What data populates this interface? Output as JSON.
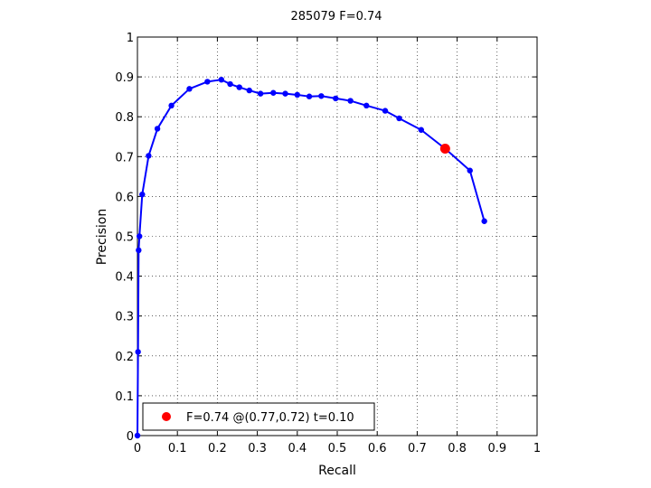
{
  "chart_data": {
    "type": "line",
    "title": "285079 F=0.74",
    "xlabel": "Recall",
    "ylabel": "Precision",
    "xlim": [
      0,
      1
    ],
    "ylim": [
      0,
      1
    ],
    "grid": true,
    "legend_position": "bottom-left",
    "x_tick_labels": [
      "0",
      "0.1",
      "0.2",
      "0.3",
      "0.4",
      "0.5",
      "0.6",
      "0.7",
      "0.8",
      "0.9",
      "1"
    ],
    "y_tick_labels": [
      "0",
      "0.1",
      "0.2",
      "0.3",
      "0.4",
      "0.5",
      "0.6",
      "0.7",
      "0.8",
      "0.9",
      "1"
    ],
    "series": [
      {
        "color": "#0000ff",
        "marker": "dot",
        "x": [
          0,
          0.0015,
          0.003,
          0.005,
          0.012,
          0.028,
          0.05,
          0.085,
          0.13,
          0.175,
          0.21,
          0.232,
          0.255,
          0.28,
          0.308,
          0.34,
          0.37,
          0.4,
          0.43,
          0.46,
          0.496,
          0.533,
          0.573,
          0.62,
          0.655,
          0.71,
          0.77,
          0.832,
          0.868
        ],
        "y": [
          0,
          0.21,
          0.465,
          0.5,
          0.605,
          0.702,
          0.77,
          0.828,
          0.87,
          0.888,
          0.893,
          0.882,
          0.874,
          0.866,
          0.858,
          0.86,
          0.858,
          0.855,
          0.851,
          0.852,
          0.846,
          0.84,
          0.828,
          0.815,
          0.796,
          0.767,
          0.72,
          0.665,
          0.538
        ]
      },
      {
        "color": "#ff0000",
        "marker": "large-dot",
        "x": [
          0.77
        ],
        "y": [
          0.72
        ]
      }
    ],
    "legend": {
      "text": "F=0.74 @(0.77,0.72) t=0.10",
      "marker_color": "#ff0000"
    }
  }
}
